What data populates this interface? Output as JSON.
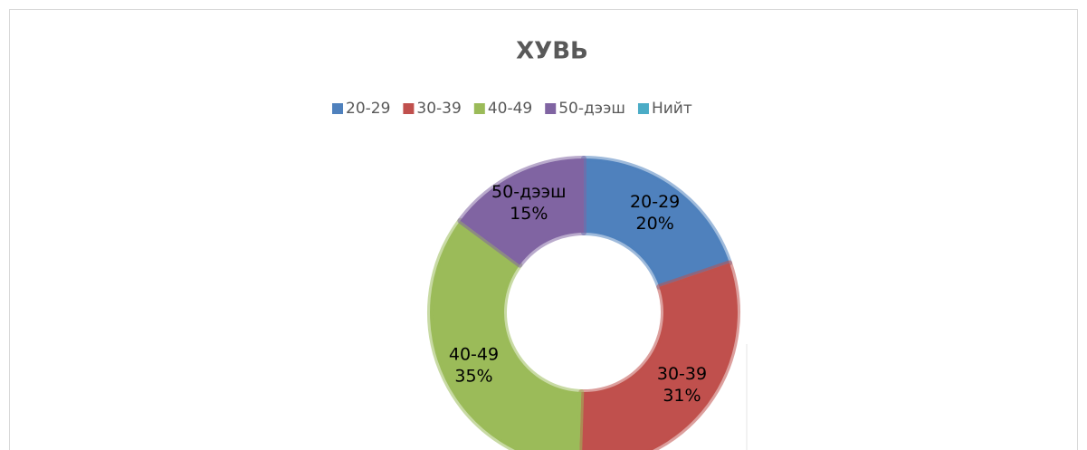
{
  "chart_data": {
    "type": "donut",
    "title": "ХУВЬ",
    "categories": [
      "20-29",
      "30-39",
      "40-49",
      "50-дээш",
      "Нийт"
    ],
    "values": [
      20,
      31,
      35,
      15,
      0
    ],
    "value_labels": [
      "20%",
      "31%",
      "35%",
      "15%",
      null
    ],
    "colors": [
      "#4f81bd",
      "#c0504d",
      "#9bbb59",
      "#8064a2",
      "#4bacc6"
    ],
    "legend": "top"
  }
}
